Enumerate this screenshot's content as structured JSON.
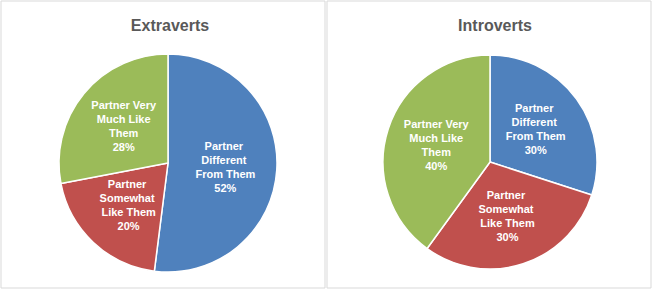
{
  "chart_data": [
    {
      "type": "pie",
      "title": "Extraverts",
      "categories": [
        "Partner Different From Them",
        "Partner Somewhat Like Them",
        "Partner Very Much Like Them"
      ],
      "values": [
        52,
        20,
        28
      ],
      "value_labels": [
        "52%",
        "20%",
        "28%"
      ],
      "colors": [
        "#4f81bd",
        "#c0504d",
        "#9bbb59"
      ],
      "data_labels": true
    },
    {
      "type": "pie",
      "title": "Introverts",
      "categories": [
        "Partner Different From Them",
        "Partner Somewhat Like Them",
        "Partner Very Much Like Them"
      ],
      "values": [
        30,
        30,
        40
      ],
      "value_labels": [
        "30%",
        "30%",
        "40%"
      ],
      "colors": [
        "#4f81bd",
        "#c0504d",
        "#9bbb59"
      ],
      "data_labels": true
    }
  ]
}
